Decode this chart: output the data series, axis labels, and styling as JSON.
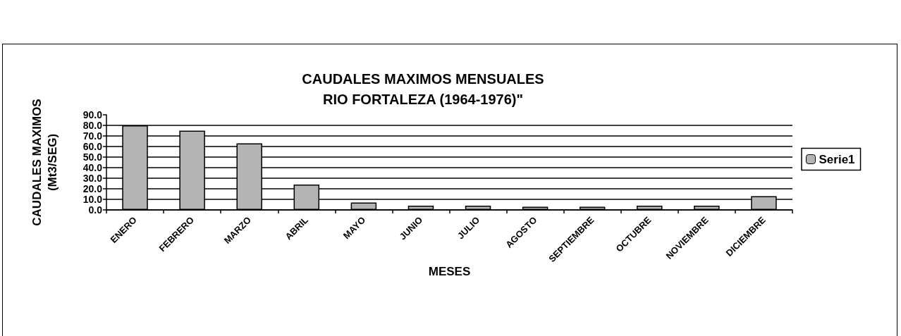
{
  "chart_data": {
    "type": "bar",
    "title": "CAUDALES MAXIMOS MENSUALES\nRIO FORTALEZA (1964-1976)\"",
    "xlabel": "MESES",
    "ylabel": "CAUDALES MAXIMOS\n(Mt3/SEG)",
    "categories": [
      "ENERO",
      "FEBRERO",
      "MARZO",
      "ABRIL",
      "MAYO",
      "JUNIO",
      "JULIO",
      "AGOSTO",
      "SEPTIEMBRE",
      "OCTUBRE",
      "NOVIEMBRE",
      "DICIEMBRE"
    ],
    "series": [
      {
        "name": "Serie1",
        "color": "#b4b4b4",
        "values": [
          80,
          75,
          63,
          24,
          7,
          4,
          4,
          3,
          3,
          4,
          4,
          13
        ]
      }
    ],
    "ylim": [
      0,
      90
    ],
    "yticks": [
      {
        "value": 0,
        "label": "0.0"
      },
      {
        "value": 10,
        "label": "10.0"
      },
      {
        "value": 20,
        "label": "20.0"
      },
      {
        "value": 30,
        "label": "30.0"
      },
      {
        "value": 40,
        "label": "40.0"
      },
      {
        "value": 50,
        "label": "50.0"
      },
      {
        "value": 60,
        "label": "60.0"
      },
      {
        "value": 70,
        "label": "70.0"
      },
      {
        "value": 80,
        "label": "80.0"
      },
      {
        "value": 90,
        "label": "90.0"
      }
    ],
    "grid": "y",
    "legend": "right"
  }
}
